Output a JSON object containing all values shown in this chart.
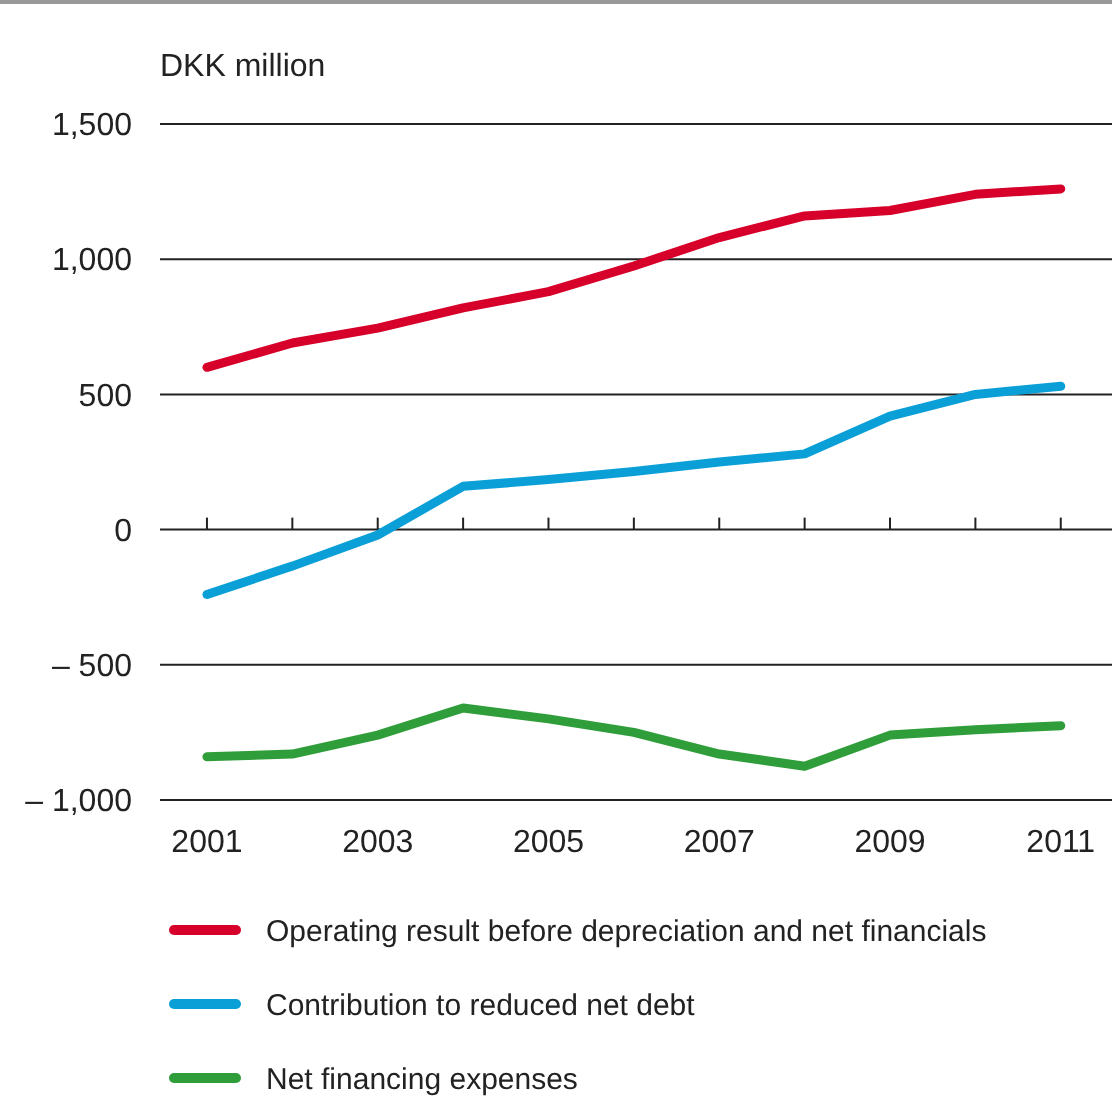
{
  "chart_data": {
    "type": "line",
    "title": "DKK million",
    "x": [
      2001,
      2002,
      2003,
      2004,
      2005,
      2006,
      2007,
      2008,
      2009,
      2010,
      2011
    ],
    "xlim": [
      2000.45,
      2011.6
    ],
    "xticks": [
      2001,
      {
        "value": 2002,
        "label": null
      },
      2003,
      {
        "value": 2004,
        "label": null
      },
      2005,
      {
        "value": 2006,
        "label": null
      },
      2007,
      {
        "value": 2008,
        "label": null
      },
      2009,
      {
        "value": 2010,
        "label": null
      },
      2011
    ],
    "ylim": [
      -1000,
      1500
    ],
    "yticks": [
      {
        "value": -1000,
        "label": "– 1,000"
      },
      {
        "value": -500,
        "label": "– 500"
      },
      0,
      500,
      {
        "value": 1000,
        "label": "1,000"
      },
      {
        "value": 1500,
        "label": "1,500"
      }
    ],
    "grid": "y",
    "legend": "bottom",
    "marker": "none",
    "line_style": "solid",
    "series": [
      {
        "name": "Operating result before depreciation and net financials",
        "color": "#d6002a",
        "values": [
          600,
          690,
          745,
          820,
          880,
          975,
          1080,
          1160,
          1180,
          1240,
          1260
        ]
      },
      {
        "name": "Contribution to reduced net debt",
        "color": "#0b9fd8",
        "values": [
          -240,
          -135,
          -20,
          160,
          185,
          215,
          250,
          280,
          420,
          500,
          530
        ]
      },
      {
        "name": "Net financing expenses",
        "color": "#2f9e3a",
        "values": [
          -840,
          -830,
          -760,
          -660,
          -700,
          -750,
          -830,
          -875,
          -760,
          -740,
          -725
        ]
      }
    ]
  }
}
